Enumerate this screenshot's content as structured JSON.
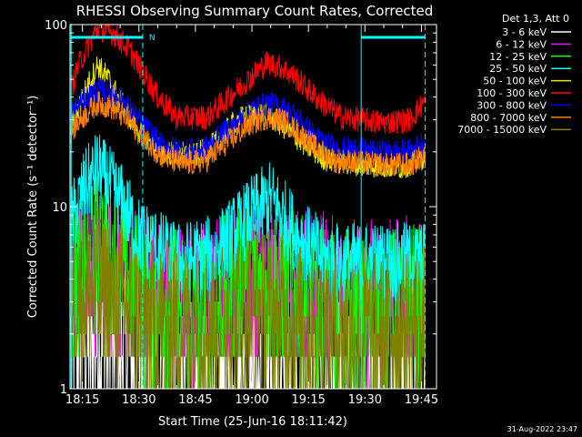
{
  "chart_data": {
    "type": "line",
    "title": "RHESSI Observing Summary Count Rates, Corrected",
    "xlabel": "Start Time (25-Jun-16 18:11:42)",
    "ylabel": "Corrected Count Rate (s⁻¹ detector⁻¹)",
    "y_scale": "log",
    "ylim": [
      1,
      100
    ],
    "xlim": [
      "18:11:42",
      "19:49"
    ],
    "x_ticks": [
      "18:15",
      "18:30",
      "18:45",
      "19:00",
      "19:15",
      "19:30",
      "19:45"
    ],
    "y_ticks": [
      "1",
      "10",
      "100"
    ],
    "legend_header": "Det 1,3, Att 0",
    "legend_position": "top-right",
    "footer_date": "31-Aug-2022 23:47",
    "flags": [
      {
        "label": "N",
        "start": "18:12",
        "end": "18:31",
        "color": "#00ffff"
      },
      {
        "label": "",
        "start": "19:29",
        "end": "19:46",
        "color": "#00ffff"
      }
    ],
    "series": [
      {
        "name": "3 - 6 keV",
        "color": "#ffffff",
        "points": [
          [
            "18:12",
            1.8
          ],
          [
            "18:20",
            1.8
          ],
          [
            "18:30",
            1.4
          ],
          [
            "18:45",
            1.0
          ],
          [
            "19:00",
            1.0
          ],
          [
            "19:15",
            1.0
          ],
          [
            "19:30",
            1.0
          ],
          [
            "19:46",
            1.0
          ]
        ]
      },
      {
        "name": "6 - 12 keV",
        "color": "#ff00ff",
        "points": [
          [
            "18:12",
            4.0
          ],
          [
            "18:20",
            4.5
          ],
          [
            "18:30",
            3.5
          ],
          [
            "18:45",
            3.0
          ],
          [
            "19:00",
            4.0
          ],
          [
            "19:15",
            3.5
          ],
          [
            "19:30",
            3.0
          ],
          [
            "19:46",
            3.5
          ]
        ]
      },
      {
        "name": "12 - 25 keV",
        "color": "#00ff00",
        "points": [
          [
            "18:12",
            3.5
          ],
          [
            "18:20",
            6.0
          ],
          [
            "18:30",
            3.5
          ],
          [
            "18:45",
            2.5
          ],
          [
            "19:00",
            4.5
          ],
          [
            "19:15",
            3.0
          ],
          [
            "19:30",
            2.5
          ],
          [
            "19:46",
            3.0
          ]
        ]
      },
      {
        "name": "25 - 50 keV",
        "color": "#00ffff",
        "points": [
          [
            "18:12",
            8.0
          ],
          [
            "18:15",
            12.0
          ],
          [
            "18:19",
            16.0
          ],
          [
            "18:25",
            11.0
          ],
          [
            "18:30",
            7.0
          ],
          [
            "18:40",
            5.0
          ],
          [
            "18:50",
            5.5
          ],
          [
            "19:00",
            9.0
          ],
          [
            "19:05",
            11.0
          ],
          [
            "19:12",
            7.0
          ],
          [
            "19:20",
            5.0
          ],
          [
            "19:35",
            5.0
          ],
          [
            "19:46",
            5.0
          ]
        ]
      },
      {
        "name": "50 - 100 keV",
        "color": "#e8e800",
        "points": [
          [
            "18:12",
            28.0
          ],
          [
            "18:15",
            40.0
          ],
          [
            "18:19",
            60.0
          ],
          [
            "18:22",
            50.0
          ],
          [
            "18:26",
            35.0
          ],
          [
            "18:30",
            26.0
          ],
          [
            "18:36",
            20.0
          ],
          [
            "18:45",
            19.0
          ],
          [
            "18:50",
            22.0
          ],
          [
            "18:56",
            30.0
          ],
          [
            "19:03",
            33.0
          ],
          [
            "19:08",
            28.0
          ],
          [
            "19:14",
            22.0
          ],
          [
            "19:20",
            18.0
          ],
          [
            "19:30",
            17.0
          ],
          [
            "19:40",
            16.5
          ],
          [
            "19:46",
            19.0
          ]
        ]
      },
      {
        "name": "100 - 300 keV",
        "color": "#ff0000",
        "points": [
          [
            "18:12",
            45.0
          ],
          [
            "18:14",
            60.0
          ],
          [
            "18:17",
            80.0
          ],
          [
            "18:19",
            95.0
          ],
          [
            "18:23",
            90.0
          ],
          [
            "18:27",
            75.0
          ],
          [
            "18:31",
            55.0
          ],
          [
            "18:35",
            40.0
          ],
          [
            "18:40",
            31.0
          ],
          [
            "18:48",
            31.0
          ],
          [
            "18:54",
            40.0
          ],
          [
            "19:00",
            52.0
          ],
          [
            "19:04",
            62.0
          ],
          [
            "19:08",
            58.0
          ],
          [
            "19:12",
            50.0
          ],
          [
            "19:18",
            38.0
          ],
          [
            "19:24",
            31.0
          ],
          [
            "19:35",
            29.0
          ],
          [
            "19:42",
            30.0
          ],
          [
            "19:46",
            38.0
          ]
        ]
      },
      {
        "name": "300 - 800 keV",
        "color": "#0000ff",
        "points": [
          [
            "18:12",
            32.0
          ],
          [
            "18:15",
            38.0
          ],
          [
            "18:19",
            44.0
          ],
          [
            "18:23",
            42.0
          ],
          [
            "18:27",
            36.0
          ],
          [
            "18:31",
            28.0
          ],
          [
            "18:36",
            22.0
          ],
          [
            "18:42",
            20.0
          ],
          [
            "18:48",
            21.0
          ],
          [
            "18:54",
            27.0
          ],
          [
            "19:00",
            34.0
          ],
          [
            "19:04",
            37.0
          ],
          [
            "19:08",
            35.0
          ],
          [
            "19:12",
            31.0
          ],
          [
            "19:17",
            24.0
          ],
          [
            "19:22",
            21.0
          ],
          [
            "19:35",
            20.0
          ],
          [
            "19:42",
            20.0
          ],
          [
            "19:46",
            23.0
          ]
        ]
      },
      {
        "name": "800 - 7000 keV",
        "color": "#ff8000",
        "points": [
          [
            "18:12",
            26.0
          ],
          [
            "18:15",
            31.0
          ],
          [
            "18:19",
            37.0
          ],
          [
            "18:23",
            35.0
          ],
          [
            "18:27",
            30.0
          ],
          [
            "18:31",
            24.0
          ],
          [
            "18:36",
            19.0
          ],
          [
            "18:42",
            17.0
          ],
          [
            "18:48",
            18.0
          ],
          [
            "18:54",
            23.0
          ],
          [
            "19:00",
            29.0
          ],
          [
            "19:04",
            31.0
          ],
          [
            "19:08",
            30.0
          ],
          [
            "19:12",
            26.0
          ],
          [
            "19:17",
            21.0
          ],
          [
            "19:22",
            18.0
          ],
          [
            "19:35",
            17.0
          ],
          [
            "19:42",
            17.0
          ],
          [
            "19:46",
            19.0
          ]
        ]
      },
      {
        "name": "7000 - 15000 keV",
        "color": "#808000",
        "points": [
          [
            "18:12",
            3.0
          ],
          [
            "18:20",
            3.5
          ],
          [
            "18:30",
            2.5
          ],
          [
            "18:45",
            2.2
          ],
          [
            "19:00",
            2.8
          ],
          [
            "19:15",
            2.2
          ],
          [
            "19:30",
            2.0
          ],
          [
            "19:46",
            2.2
          ]
        ]
      }
    ]
  }
}
